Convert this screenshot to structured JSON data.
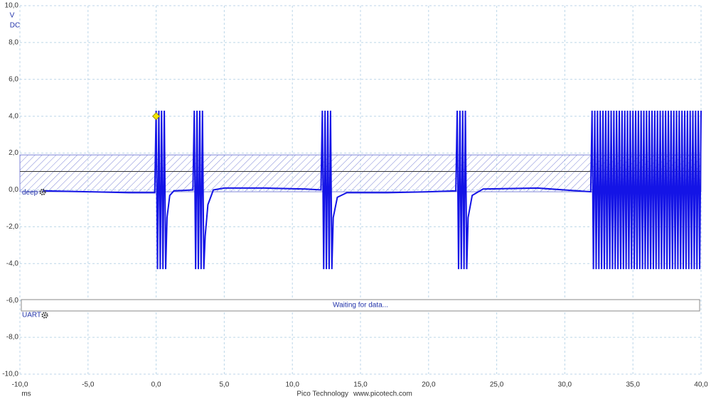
{
  "chart_data": {
    "type": "line",
    "y_unit": "V",
    "coupling": "DC",
    "x_unit": "ms",
    "footer": [
      "Pico Technology",
      "www.picotech.com"
    ],
    "xlim": [
      -10,
      40
    ],
    "ylim": [
      -10,
      10
    ],
    "xticks": [
      {
        "value": -10,
        "label": "-10,0"
      },
      {
        "value": -5,
        "label": "-5,0"
      },
      {
        "value": 0,
        "label": "0,0"
      },
      {
        "value": 5,
        "label": "5,0"
      },
      {
        "value": 10,
        "label": "10,0"
      },
      {
        "value": 15,
        "label": "15,0"
      },
      {
        "value": 20,
        "label": "20,0"
      },
      {
        "value": 25,
        "label": "25,0"
      },
      {
        "value": 30,
        "label": "30,0"
      },
      {
        "value": 35,
        "label": "35,0"
      },
      {
        "value": 40,
        "label": "40,0"
      }
    ],
    "yticks": [
      {
        "value": 10,
        "label": "10,0"
      },
      {
        "value": 8,
        "label": "8,0"
      },
      {
        "value": 6,
        "label": "6,0"
      },
      {
        "value": 4,
        "label": "4,0"
      },
      {
        "value": 2,
        "label": "2,0"
      },
      {
        "value": 0,
        "label": "0,0"
      },
      {
        "value": -2,
        "label": "-2,0"
      },
      {
        "value": -4,
        "label": "-4,0"
      },
      {
        "value": -6,
        "label": "-6,0"
      },
      {
        "value": -8,
        "label": "-8,0"
      },
      {
        "value": -10,
        "label": "-10,0"
      }
    ],
    "grid": true,
    "threshold": 1.0,
    "threshold_band": [
      -0.1,
      1.9
    ],
    "trigger": {
      "x": 0,
      "y": 4.0
    },
    "decoder": {
      "name": "UART",
      "status": "Waiting for data..."
    },
    "series": [
      {
        "name": "deep",
        "color": "#1414e6",
        "x": [
          -8.3,
          -5,
          -2,
          -0.1,
          0.0,
          0.1,
          0.2,
          0.3,
          0.4,
          0.5,
          0.6,
          0.7,
          0.8,
          1.0,
          1.3,
          2.7,
          2.8,
          2.9,
          3.0,
          3.1,
          3.2,
          3.3,
          3.4,
          3.5,
          3.6,
          3.8,
          4.2,
          5,
          8,
          11,
          12.1,
          12.2,
          12.3,
          12.4,
          12.5,
          12.6,
          12.7,
          12.8,
          12.9,
          13.0,
          13.3,
          14,
          17,
          20,
          22.0,
          22.1,
          22.2,
          22.3,
          22.4,
          22.5,
          22.6,
          22.7,
          22.8,
          22.9,
          23.2,
          24,
          28,
          31.9,
          32.0,
          32.1,
          32.2,
          32.3,
          32.4,
          32.5,
          32.6,
          32.7,
          32.8,
          32.9,
          33.0,
          33.1,
          33.2,
          33.3,
          33.4,
          33.5,
          33.6,
          33.7,
          33.8,
          33.9,
          34.0,
          34.1,
          34.2,
          34.3,
          34.4,
          34.5,
          34.6,
          34.7,
          34.8,
          34.9,
          35.0,
          35.1,
          35.2,
          35.3,
          35.4,
          35.5,
          35.6,
          35.7,
          35.8,
          35.9,
          36.0,
          36.1,
          36.2,
          36.3,
          36.4,
          36.5,
          36.6,
          36.7,
          36.8,
          36.9,
          37.0,
          37.1,
          37.2,
          37.3,
          37.4,
          37.5,
          37.6,
          37.7,
          37.8,
          37.9,
          38.0,
          38.1,
          38.2,
          38.3,
          38.4,
          38.5,
          38.6,
          38.7,
          38.8,
          38.9,
          39.0,
          39.1,
          39.2,
          39.3,
          39.4,
          39.5,
          39.6,
          39.7,
          39.8,
          39.9,
          40.0
        ],
        "values": [
          -0.05,
          -0.1,
          -0.15,
          -0.15,
          4.3,
          -4.3,
          4.3,
          -4.3,
          4.3,
          -4.3,
          4.3,
          -4.3,
          -1.5,
          -0.3,
          -0.05,
          0,
          4.3,
          -4.3,
          4.3,
          -4.3,
          4.3,
          -4.3,
          4.3,
          -4.3,
          -2.5,
          -0.8,
          0,
          0.1,
          0.1,
          0.05,
          0,
          4.3,
          -4.3,
          4.3,
          -4.3,
          4.3,
          -4.3,
          4.3,
          -4.3,
          -1.5,
          -0.4,
          -0.15,
          -0.15,
          -0.1,
          -0.05,
          4.3,
          -4.3,
          4.3,
          -4.3,
          4.3,
          -4.3,
          4.3,
          -4.3,
          -1.5,
          -0.3,
          0.05,
          0.1,
          -0.1,
          4.3,
          -4.3,
          4.3,
          -4.3,
          4.3,
          -4.3,
          4.3,
          -4.3,
          4.3,
          -4.3,
          4.3,
          -4.3,
          4.3,
          -4.3,
          4.3,
          -4.3,
          4.3,
          -4.3,
          4.3,
          -4.3,
          4.3,
          -4.3,
          4.3,
          -4.3,
          4.3,
          -4.3,
          4.3,
          -4.3,
          4.3,
          -4.3,
          4.3,
          -4.3,
          4.3,
          -4.3,
          4.3,
          -4.3,
          4.3,
          -4.3,
          4.3,
          -4.3,
          4.3,
          -4.3,
          4.3,
          -4.3,
          4.3,
          -4.3,
          4.3,
          -4.3,
          4.3,
          -4.3,
          4.3,
          -4.3,
          4.3,
          -4.3,
          4.3,
          -4.3,
          4.3,
          -4.3,
          4.3,
          -4.3,
          4.3,
          -4.3,
          4.3,
          -4.3,
          4.3,
          -4.3,
          4.3,
          -4.3,
          4.3,
          -4.3,
          4.3,
          -4.3,
          4.3,
          -4.3,
          4.3,
          -4.3,
          4.3,
          -4.3,
          4.3,
          -4.3,
          4.3
        ]
      }
    ]
  }
}
